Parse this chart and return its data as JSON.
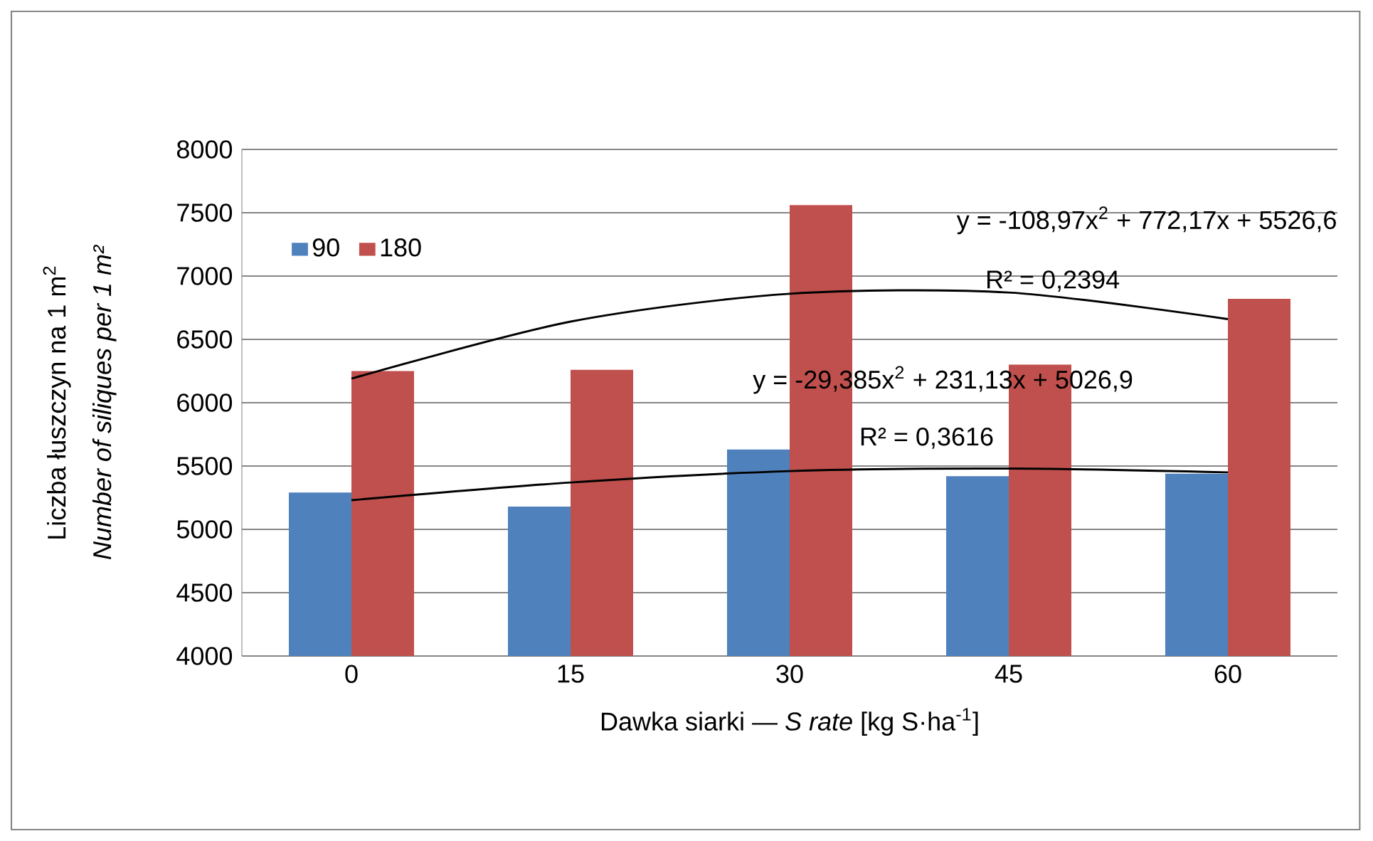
{
  "chart_data": {
    "type": "bar",
    "categories": [
      "0",
      "15",
      "30",
      "45",
      "60"
    ],
    "series": [
      {
        "name": "90",
        "color": "#4f81bd",
        "values": [
          5290,
          5180,
          5630,
          5420,
          5440
        ]
      },
      {
        "name": "180",
        "color": "#c0504d",
        "values": [
          6250,
          6260,
          7560,
          6300,
          6820
        ]
      },
      {
        "type": "line",
        "color": "#000000",
        "x": [
          "0",
          "15",
          "30",
          "45",
          "60"
        ],
        "values": [
          6190,
          6640,
          6860,
          6870,
          6660
        ]
      },
      {
        "type": "line",
        "color": "#000000",
        "x": [
          "0",
          "15",
          "30",
          "45",
          "60"
        ],
        "values": [
          5230,
          5370,
          5460,
          5480,
          5450
        ]
      }
    ],
    "ylim": [
      4000,
      8000
    ],
    "yticks": [
      4000,
      4500,
      5000,
      5500,
      6000,
      6500,
      7000,
      7500,
      8000
    ],
    "xlabel": "Dawka siarki — *S rate* [kg S·ha$^{-1}$]",
    "ylabel": "Liczba łuszczyn na 1 m$^{2}$",
    "annotations": [
      "Number of siliques per 1 m²",
      "y = -108,97x$^{2}$ + 772,17x + 5526,6",
      "R² = 0,2394",
      "y = -29,385x$^{2}$ + 231,13x + 5026,9",
      "R² = 0,3616"
    ],
    "grid": "y",
    "legend": "top left",
    "marker": "none",
    "line_style": "solid"
  }
}
